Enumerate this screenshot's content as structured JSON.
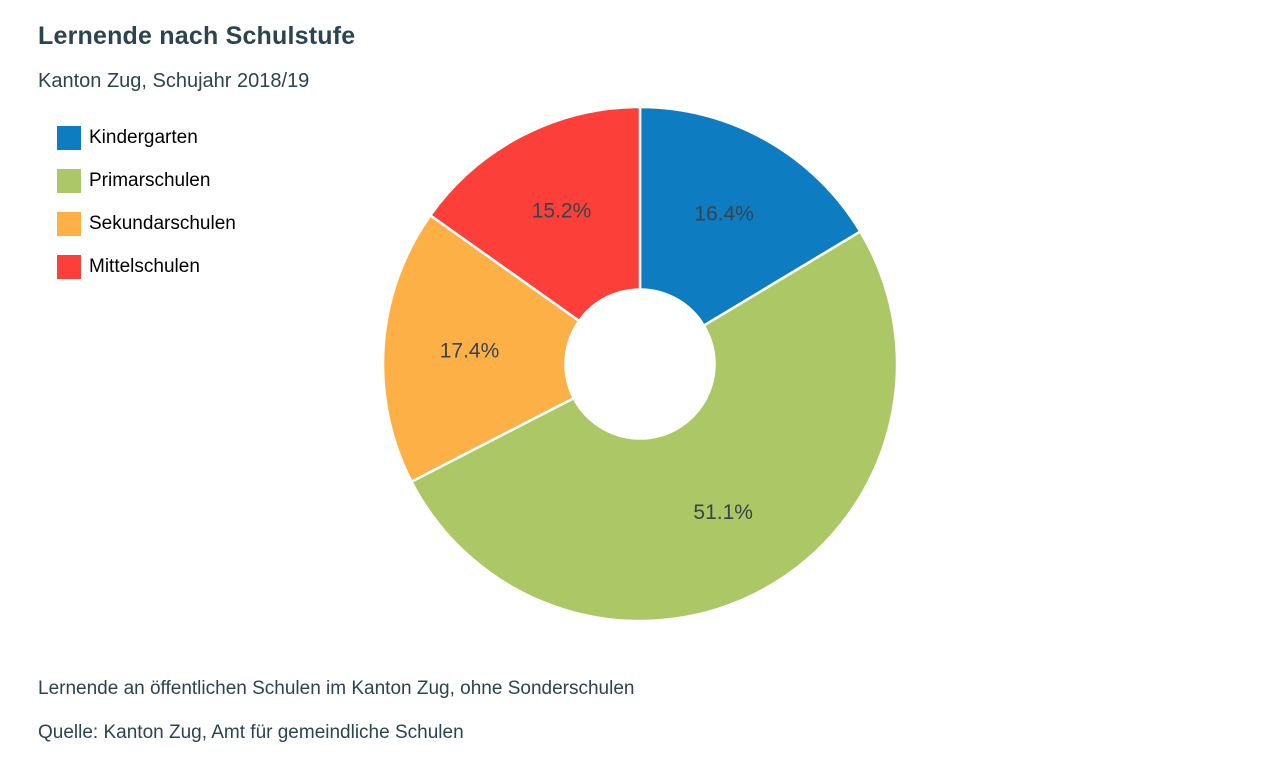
{
  "header": {
    "title": "Lernende nach Schulstufe",
    "subtitle": "Kanton Zug, Schujahr 2018/19"
  },
  "chart_data": {
    "type": "pie",
    "subtype": "donut",
    "title": "Lernende nach Schulstufe",
    "subtitle": "Kanton Zug, Schujahr 2018/19",
    "start_angle_deg": 0,
    "direction": "clockwise",
    "inner_radius_ratio": 0.29,
    "label_radius_ratio": 0.665,
    "legend_position": "top-left",
    "categories": [
      "Kindergarten",
      "Primarschulen",
      "Sekundarschulen",
      "Mittelschulen"
    ],
    "values": [
      16.4,
      51.1,
      17.4,
      15.2
    ],
    "slices": [
      {
        "label": "Kindergarten",
        "value_pct": 16.4,
        "display": "16.4%",
        "color": "#0d7cc1"
      },
      {
        "label": "Primarschulen",
        "value_pct": 51.1,
        "display": "51.1%",
        "color": "#abc766"
      },
      {
        "label": "Sekundarschulen",
        "value_pct": 17.4,
        "display": "17.4%",
        "color": "#fdb045"
      },
      {
        "label": "Mittelschulen",
        "value_pct": 15.2,
        "display": "15.2%",
        "color": "#fc3f38"
      }
    ]
  },
  "legend": {
    "items": [
      {
        "label": "Kindergarten",
        "color": "#0d7cc1",
        "icon": "legend-swatch-icon"
      },
      {
        "label": "Primarschulen",
        "color": "#abc766",
        "icon": "legend-swatch-icon"
      },
      {
        "label": "Sekundarschulen",
        "color": "#fdb045",
        "icon": "legend-swatch-icon"
      },
      {
        "label": "Mittelschulen",
        "color": "#fc3f38",
        "icon": "legend-swatch-icon"
      }
    ]
  },
  "footer": {
    "note": "Lernende an öffentlichen Schulen im Kanton Zug, ohne Sonderschulen",
    "source": "Quelle: Kanton Zug, Amt für gemeindliche Schulen"
  },
  "colors": {
    "background": "#ffffff",
    "heading_text": "#2c4450",
    "slice_label_text": "#37444e",
    "legend_text": "#000000",
    "slice_separator": "#ffffff"
  }
}
